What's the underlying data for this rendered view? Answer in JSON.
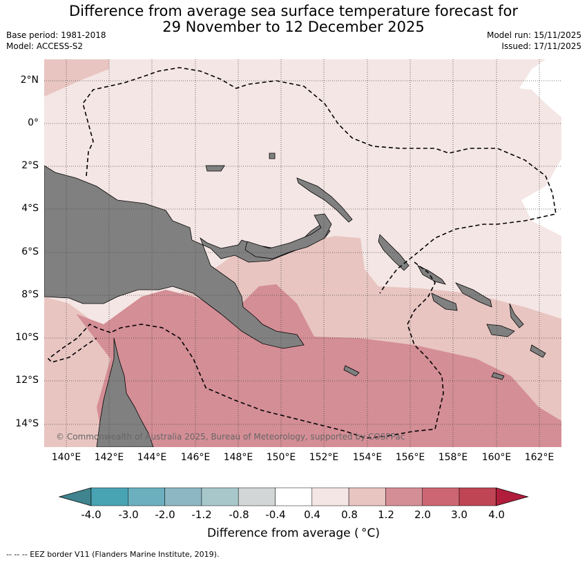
{
  "header": {
    "title_line1": "Difference from average sea surface temperature forecast for",
    "title_line2": "29 November to 12 December 2025",
    "base_period": "Base period: 1981-2018",
    "model": "Model: ACCESS-S2",
    "model_run": "Model run: 15/11/2025",
    "issued": "Issued: 17/11/2025"
  },
  "map": {
    "lat_labels": [
      "2°N",
      "0°",
      "2°S",
      "4°S",
      "6°S",
      "8°S",
      "10°S",
      "12°S",
      "14°S"
    ],
    "lon_labels": [
      "140°E",
      "142°E",
      "144°E",
      "146°E",
      "148°E",
      "150°E",
      "152°E",
      "154°E",
      "156°E",
      "158°E",
      "160°E",
      "162°E"
    ],
    "copyright": "© Commonwealth of Australia 2025, Bureau of Meteorology, supported by COSPPac",
    "colors": {
      "land": "#808080",
      "band_0_4_to_0_8": "#f4e6e4",
      "band_0_8_to_1_2": "#e8c5c1",
      "band_1_2_to_2_0": "#d48e96"
    }
  },
  "colorbar": {
    "ticks": [
      "-4.0",
      "-3.0",
      "-2.0",
      "-1.2",
      "-0.8",
      "-0.4",
      "0.4",
      "0.8",
      "1.2",
      "2.0",
      "3.0",
      "4.0"
    ],
    "colors": [
      "#3f848f",
      "#48a3b3",
      "#6cb0bf",
      "#8db7c2",
      "#a7c7cb",
      "#d2d6d7",
      "#ffffff",
      "#f4e6e4",
      "#e8c5c1",
      "#d48e96",
      "#cc6672",
      "#bf4554",
      "#b01e3c"
    ],
    "label": "Difference from average ( °C)"
  },
  "footer": {
    "eez_note": "--  --  -- EEZ border V11 (Flanders Marine Institute, 2019)."
  }
}
